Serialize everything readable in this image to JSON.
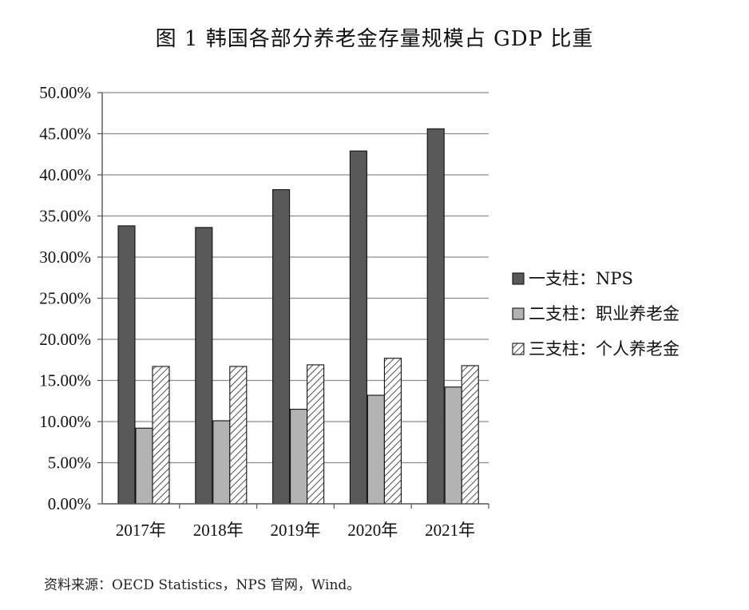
{
  "title": "图 1  韩国各部分养老金存量规模占 GDP 比重",
  "source": "资料来源：OECD Statistics，NPS 官网，Wind。",
  "chart_data": {
    "type": "bar",
    "categories": [
      "2017年",
      "2018年",
      "2019年",
      "2020年",
      "2021年"
    ],
    "series": [
      {
        "name": "一支柱：NPS",
        "values": [
          33.8,
          33.6,
          38.2,
          42.9,
          45.6
        ],
        "color": "#595959",
        "pattern": "solid"
      },
      {
        "name": "二支柱：职业养老金",
        "values": [
          9.2,
          10.1,
          11.5,
          13.2,
          14.2
        ],
        "color": "#b3b3b3",
        "pattern": "solid"
      },
      {
        "name": "三支柱：个人养老金",
        "values": [
          16.7,
          16.7,
          16.9,
          17.7,
          16.8
        ],
        "color": "#ffffff",
        "pattern": "diagonal-hatch"
      }
    ],
    "yticks": [
      "0.00%",
      "5.00%",
      "10.00%",
      "15.00%",
      "20.00%",
      "25.00%",
      "30.00%",
      "35.00%",
      "40.00%",
      "45.00%",
      "50.00%"
    ],
    "ylim": [
      0,
      50
    ],
    "grid": true,
    "legend_position": "right"
  }
}
